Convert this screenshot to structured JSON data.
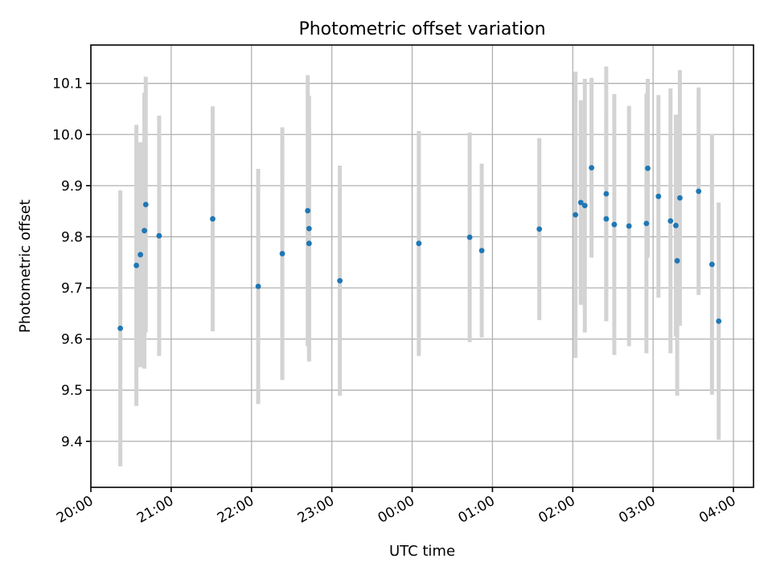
{
  "chart_data": {
    "type": "scatter",
    "title": "Photometric offset variation",
    "xlabel": "UTC time",
    "ylabel": "Photometric offset",
    "grid": true,
    "xlim": [
      "20:00",
      "04:15"
    ],
    "ylim": [
      9.31,
      10.175
    ],
    "x_ticks": [
      "20:00",
      "21:00",
      "22:00",
      "23:00",
      "00:00",
      "01:00",
      "02:00",
      "03:00",
      "04:00"
    ],
    "y_ticks": [
      "9.4",
      "9.5",
      "9.6",
      "9.7",
      "9.8",
      "9.9",
      "10.0",
      "10.1"
    ],
    "error_bar_color": "#d3d3d3",
    "marker_color": "#1f77b4",
    "series": [
      {
        "points": [
          {
            "x": "20:22",
            "y": 9.621,
            "err": 0.27
          },
          {
            "x": "20:34",
            "y": 9.744,
            "err": 0.275
          },
          {
            "x": "20:37",
            "y": 9.765,
            "err": 0.22
          },
          {
            "x": "20:40",
            "y": 9.812,
            "err": 0.27
          },
          {
            "x": "20:41",
            "y": 9.863,
            "err": 0.25
          },
          {
            "x": "20:51",
            "y": 9.802,
            "err": 0.235
          },
          {
            "x": "21:31",
            "y": 9.835,
            "err": 0.22
          },
          {
            "x": "22:05",
            "y": 9.703,
            "err": 0.23
          },
          {
            "x": "22:23",
            "y": 9.767,
            "err": 0.247
          },
          {
            "x": "22:42",
            "y": 9.851,
            "err": 0.265
          },
          {
            "x": "22:43",
            "y": 9.816,
            "err": 0.26
          },
          {
            "x": "22:43",
            "y": 9.787,
            "err": 0.225
          },
          {
            "x": "23:06",
            "y": 9.714,
            "err": 0.225
          },
          {
            "x": "00:05",
            "y": 9.787,
            "err": 0.22
          },
          {
            "x": "00:43",
            "y": 9.799,
            "err": 0.205
          },
          {
            "x": "00:52",
            "y": 9.773,
            "err": 0.17
          },
          {
            "x": "01:35",
            "y": 9.815,
            "err": 0.178
          },
          {
            "x": "02:02",
            "y": 9.843,
            "err": 0.28
          },
          {
            "x": "02:06",
            "y": 9.867,
            "err": 0.2
          },
          {
            "x": "02:09",
            "y": 9.861,
            "err": 0.248
          },
          {
            "x": "02:14",
            "y": 9.935,
            "err": 0.176
          },
          {
            "x": "02:25",
            "y": 9.884,
            "err": 0.249
          },
          {
            "x": "02:25",
            "y": 9.835,
            "err": 0.2
          },
          {
            "x": "02:31",
            "y": 9.824,
            "err": 0.255
          },
          {
            "x": "02:42",
            "y": 9.821,
            "err": 0.235
          },
          {
            "x": "02:55",
            "y": 9.826,
            "err": 0.254
          },
          {
            "x": "02:56",
            "y": 9.934,
            "err": 0.175
          },
          {
            "x": "03:04",
            "y": 9.879,
            "err": 0.198
          },
          {
            "x": "03:13",
            "y": 9.831,
            "err": 0.259
          },
          {
            "x": "03:17",
            "y": 9.822,
            "err": 0.217
          },
          {
            "x": "03:18",
            "y": 9.753,
            "err": 0.264
          },
          {
            "x": "03:20",
            "y": 9.876,
            "err": 0.25
          },
          {
            "x": "03:34",
            "y": 9.889,
            "err": 0.203
          },
          {
            "x": "03:44",
            "y": 9.746,
            "err": 0.255
          },
          {
            "x": "03:49",
            "y": 9.635,
            "err": 0.232
          }
        ]
      }
    ]
  }
}
